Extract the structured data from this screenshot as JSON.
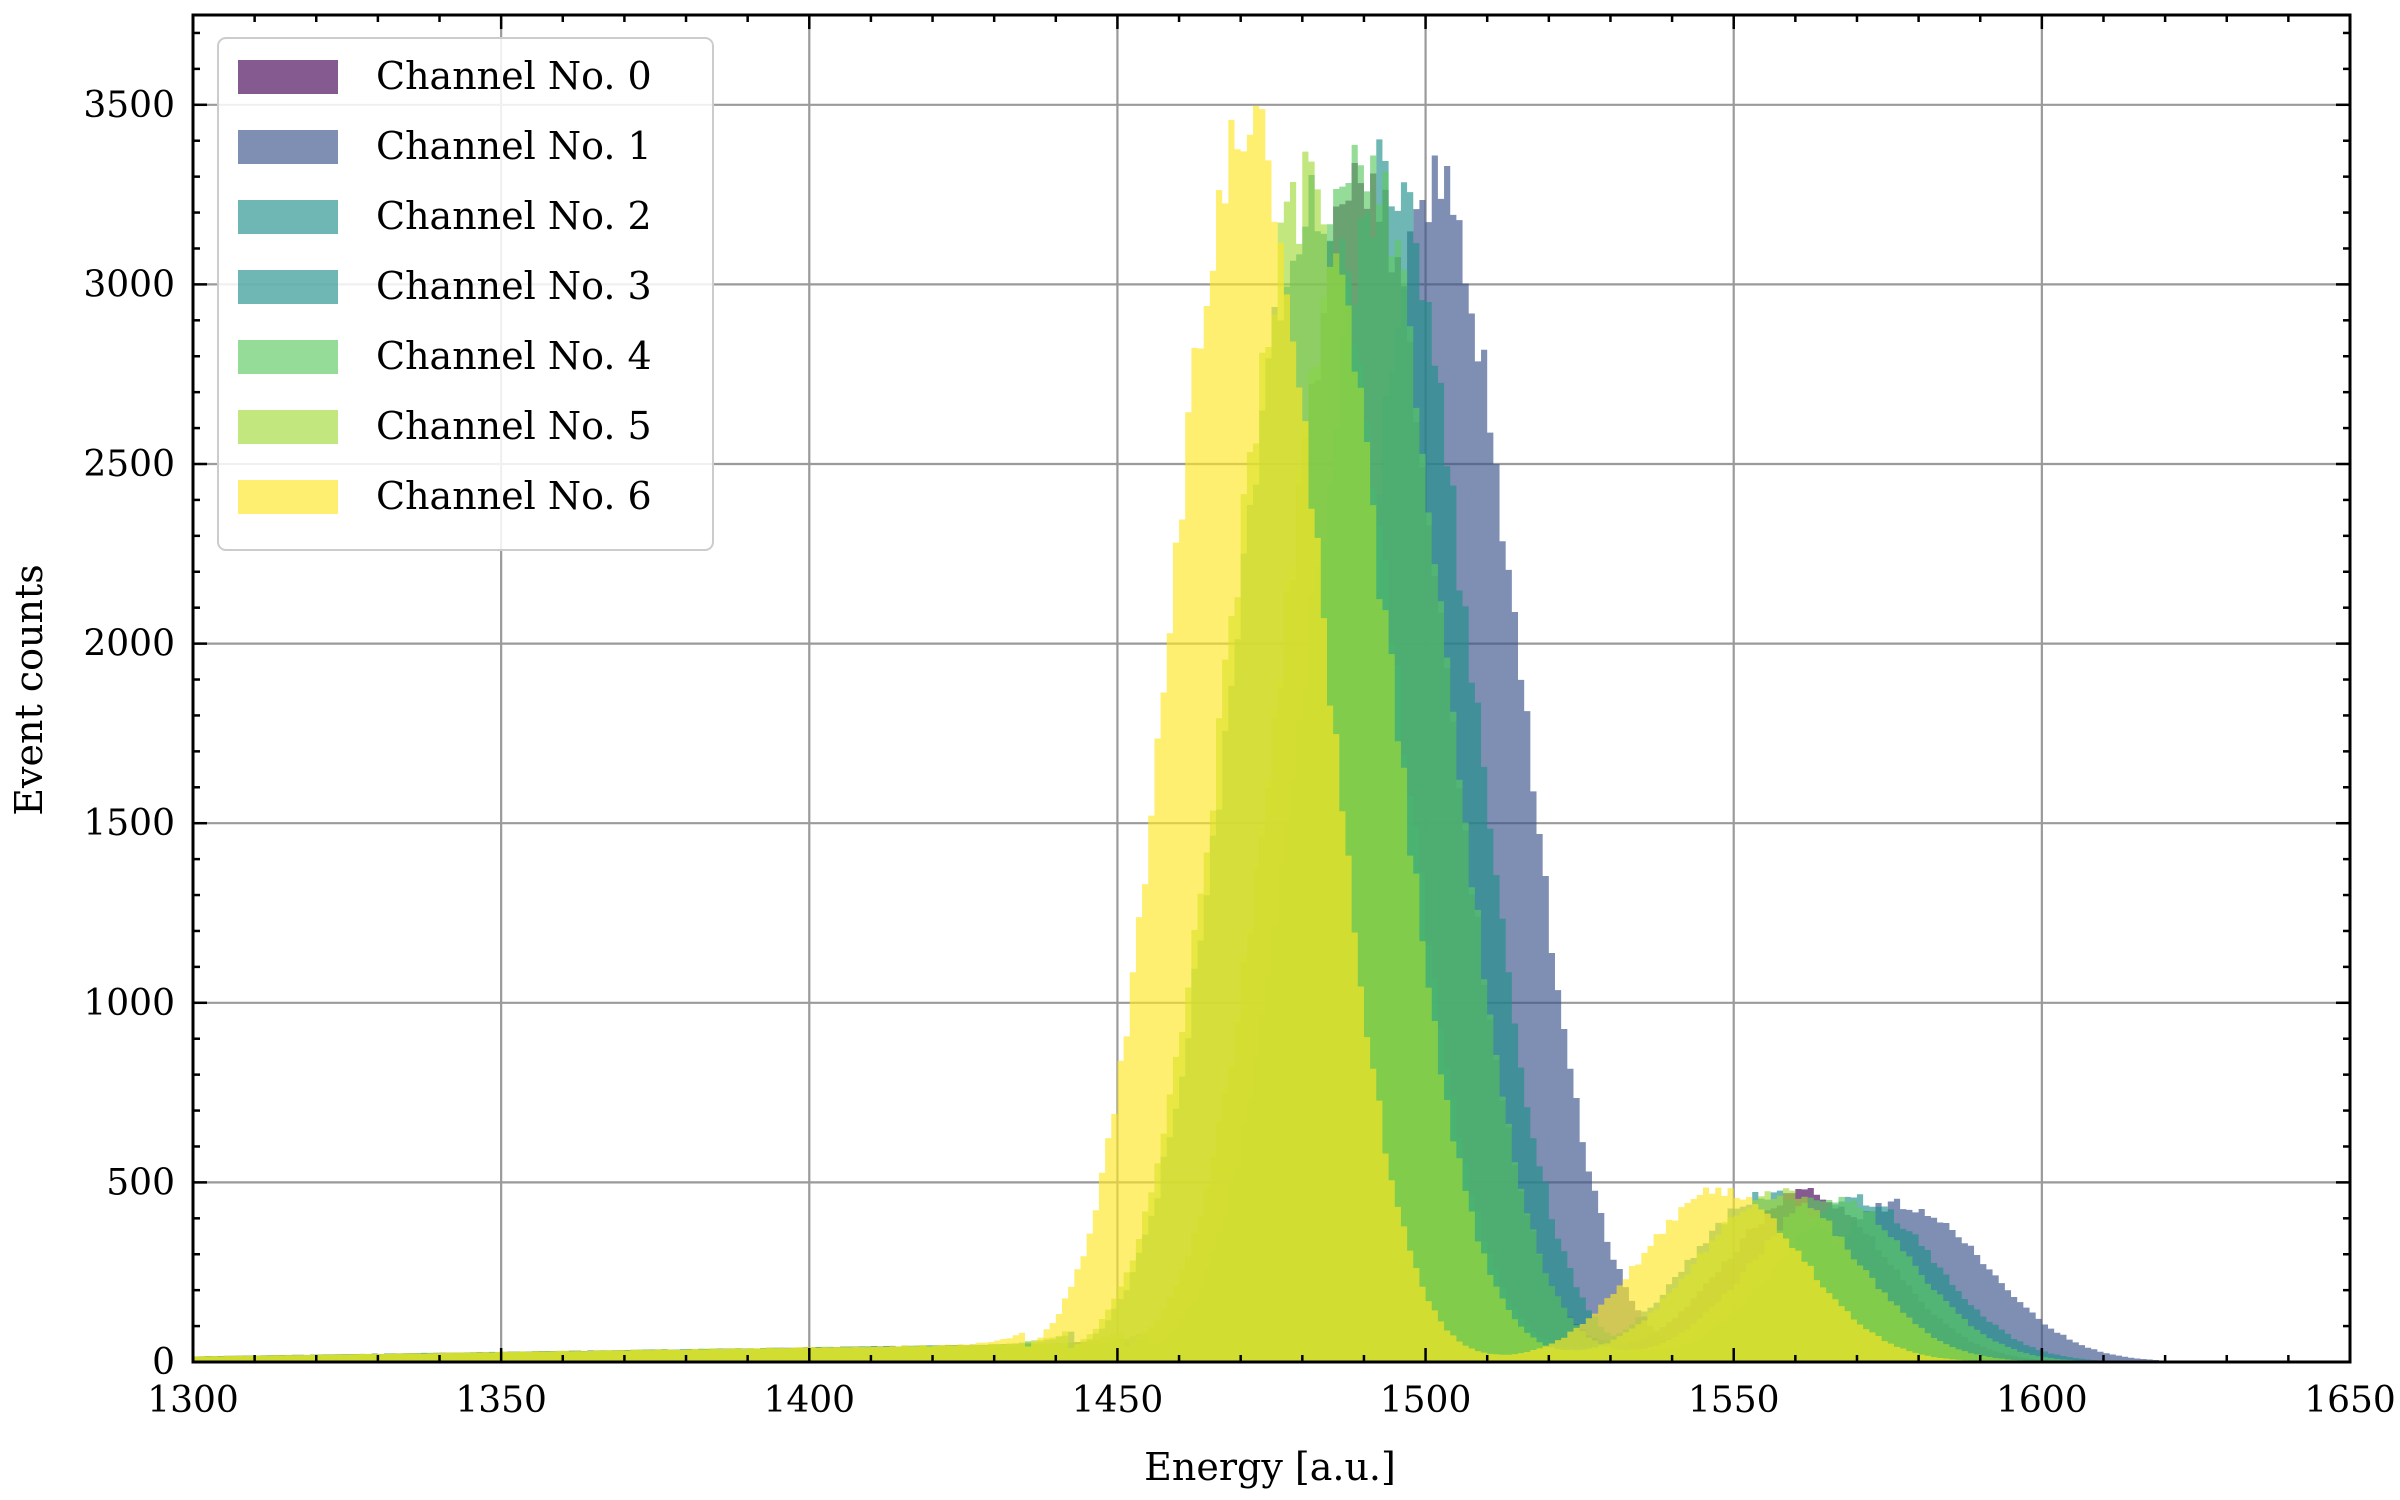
{
  "chart_data": {
    "type": "bar",
    "subtype": "histogram",
    "xlabel": "Energy [a.u.]",
    "ylabel": "Event counts",
    "xlim": [
      1300,
      1650
    ],
    "ylim": [
      0,
      3750
    ],
    "xticks": [
      1300,
      1350,
      1400,
      1450,
      1500,
      1550,
      1600,
      1650
    ],
    "yticks": [
      0,
      500,
      1000,
      1500,
      2000,
      2500,
      3000,
      3500
    ],
    "grid": true,
    "legend_placement": "top-left",
    "bin_width": 1,
    "series": [
      {
        "name": "Channel No. 0",
        "color": "#440154",
        "peak1_center": 1490,
        "peak1_height": 3300,
        "peak1_sigma": 13,
        "peak2_center": 1562,
        "peak2_height": 470,
        "peak2_sigma": 13
      },
      {
        "name": "Channel No. 1",
        "color": "#3b528b",
        "peak1_center": 1502,
        "peak1_height": 3250,
        "peak1_sigma": 13,
        "peak2_center": 1577,
        "peak2_height": 440,
        "peak2_sigma": 14
      },
      {
        "name": "Channel No. 2",
        "color": "#21918c",
        "peak1_center": 1482,
        "peak1_height": 3250,
        "peak1_sigma": 13,
        "peak2_center": 1556,
        "peak2_height": 470,
        "peak2_sigma": 13
      },
      {
        "name": "Channel No. 3",
        "color": "#21918c",
        "peak1_center": 1494,
        "peak1_height": 3300,
        "peak1_sigma": 13,
        "peak2_center": 1570,
        "peak2_height": 450,
        "peak2_sigma": 13
      },
      {
        "name": "Channel No. 4",
        "color": "#5ec962",
        "peak1_center": 1490,
        "peak1_height": 3350,
        "peak1_sigma": 13,
        "peak2_center": 1566,
        "peak2_height": 460,
        "peak2_sigma": 13
      },
      {
        "name": "Channel No. 5",
        "color": "#a0da39",
        "peak1_center": 1481,
        "peak1_height": 3250,
        "peak1_sigma": 13,
        "peak2_center": 1557,
        "peak2_height": 470,
        "peak2_sigma": 13
      },
      {
        "name": "Channel No. 6",
        "color": "#fde725",
        "peak1_center": 1471,
        "peak1_height": 3500,
        "peak1_sigma": 12,
        "peak2_center": 1548,
        "peak2_height": 480,
        "peak2_sigma": 13
      }
    ],
    "baseline": {
      "start": 15,
      "rise_to": 50,
      "rise_from_x": 1300,
      "rise_to_x": 1440
    }
  }
}
